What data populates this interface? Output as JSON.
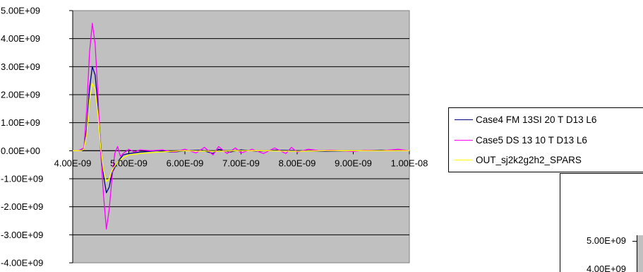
{
  "chart_data": [
    {
      "type": "line",
      "title": "",
      "xlabel": "",
      "ylabel": "",
      "xlim": [
        4e-09,
        1e-08
      ],
      "ylim": [
        -4000000000.0,
        5000000000.0
      ],
      "x_ticks": [
        "4.00E-09",
        "5.00E-09",
        "6.00E-09",
        "7.00E-09",
        "8.00E-09",
        "9.00E-09",
        "1.00E-08"
      ],
      "y_ticks": [
        "5.00E+09",
        "4.00E+09",
        "3.00E+09",
        "2.00E+09",
        "1.00E+09",
        "0.00E+00",
        "-1.00E+09",
        "-2.00E+09",
        "-3.00E+09",
        "-4.00E+09"
      ],
      "grid": "horizontal",
      "plot_background": "#c0c0c0",
      "legend_position": "right",
      "series": [
        {
          "name": "Case4 FM 13SI 20 T D13 L6",
          "color": "#000080",
          "points": [
            [
              4e-09,
              0
            ],
            [
              4.1e-09,
              0
            ],
            [
              4.2e-09,
              50000000.0
            ],
            [
              4.25e-09,
              800000000.0
            ],
            [
              4.3e-09,
              2200000000.0
            ],
            [
              4.35e-09,
              3000000000.0
            ],
            [
              4.4e-09,
              2700000000.0
            ],
            [
              4.45e-09,
              1600000000.0
            ],
            [
              4.5e-09,
              200000000.0
            ],
            [
              4.55e-09,
              -900000000.0
            ],
            [
              4.6e-09,
              -1500000000.0
            ],
            [
              4.65e-09,
              -1300000000.0
            ],
            [
              4.7e-09,
              -800000000.0
            ],
            [
              4.8e-09,
              -400000000.0
            ],
            [
              4.9e-09,
              -150000000.0
            ],
            [
              5e-09,
              -100000000.0
            ],
            [
              5.2e-09,
              -50000000.0
            ],
            [
              5.5e-09,
              0
            ],
            [
              5.8e-09,
              -50000000.0
            ],
            [
              6e-09,
              0
            ],
            [
              6.3e-09,
              20000000.0
            ],
            [
              6.5e-09,
              -100000000.0
            ],
            [
              6.6e-09,
              50000000.0
            ],
            [
              6.8e-09,
              -50000000.0
            ],
            [
              7e-09,
              30000000.0
            ],
            [
              7.3e-09,
              -20000000.0
            ],
            [
              7.6e-09,
              20000000.0
            ],
            [
              8e-09,
              0
            ],
            [
              8.5e-09,
              -20000000.0
            ],
            [
              9e-09,
              0
            ],
            [
              9.5e-09,
              20000000.0
            ],
            [
              1e-08,
              0
            ]
          ]
        },
        {
          "name": "Case5 DS 13 10 T D13 L6",
          "color": "#ff00ff",
          "points": [
            [
              4e-09,
              0
            ],
            [
              4.1e-09,
              0
            ],
            [
              4.2e-09,
              100000000.0
            ],
            [
              4.25e-09,
              1500000000.0
            ],
            [
              4.3e-09,
              3500000000.0
            ],
            [
              4.35e-09,
              4550000000.0
            ],
            [
              4.4e-09,
              3800000000.0
            ],
            [
              4.45e-09,
              2000000000.0
            ],
            [
              4.5e-09,
              -100000000.0
            ],
            [
              4.55e-09,
              -1600000000.0
            ],
            [
              4.6e-09,
              -2800000000.0
            ],
            [
              4.65e-09,
              -2100000000.0
            ],
            [
              4.7e-09,
              -1000000000.0
            ],
            [
              4.75e-09,
              -100000000.0
            ],
            [
              4.8e-09,
              150000000.0
            ],
            [
              4.85e-09,
              -200000000.0
            ],
            [
              4.9e-09,
              -100000000.0
            ],
            [
              5e-09,
              50000000.0
            ],
            [
              5.1e-09,
              -50000000.0
            ],
            [
              5.2e-09,
              30000000.0
            ],
            [
              5.4e-09,
              0
            ],
            [
              5.6e-09,
              30000000.0
            ],
            [
              5.8e-09,
              -50000000.0
            ],
            [
              6e-09,
              50000000.0
            ],
            [
              6.2e-09,
              -80000000.0
            ],
            [
              6.35e-09,
              120000000.0
            ],
            [
              6.5e-09,
              -150000000.0
            ],
            [
              6.6e-09,
              150000000.0
            ],
            [
              6.75e-09,
              -100000000.0
            ],
            [
              6.9e-09,
              100000000.0
            ],
            [
              7e-09,
              -80000000.0
            ],
            [
              7.2e-09,
              50000000.0
            ],
            [
              7.4e-09,
              -100000000.0
            ],
            [
              7.6e-09,
              100000000.0
            ],
            [
              7.8e-09,
              -100000000.0
            ],
            [
              7.9e-09,
              120000000.0
            ],
            [
              8e-09,
              -50000000.0
            ],
            [
              8.2e-09,
              50000000.0
            ],
            [
              8.4e-09,
              0
            ],
            [
              8.6e-09,
              20000000.0
            ],
            [
              8.8e-09,
              0
            ],
            [
              9e-09,
              -30000000.0
            ],
            [
              9.2e-09,
              20000000.0
            ],
            [
              9.5e-09,
              0
            ],
            [
              9.8e-09,
              50000000.0
            ],
            [
              1e-08,
              0
            ]
          ]
        },
        {
          "name": "OUT_sj2k2g2h2_SPARS",
          "color": "#ffff00",
          "points": [
            [
              4e-09,
              0
            ],
            [
              4.15e-09,
              0
            ],
            [
              4.2e-09,
              50000000.0
            ],
            [
              4.25e-09,
              600000000.0
            ],
            [
              4.3e-09,
              1800000000.0
            ],
            [
              4.35e-09,
              2400000000.0
            ],
            [
              4.4e-09,
              2200000000.0
            ],
            [
              4.45e-09,
              1300000000.0
            ],
            [
              4.5e-09,
              100000000.0
            ],
            [
              4.55e-09,
              -700000000.0
            ],
            [
              4.6e-09,
              -1100000000.0
            ],
            [
              4.65e-09,
              -1000000000.0
            ],
            [
              4.7e-09,
              -700000000.0
            ],
            [
              4.8e-09,
              -400000000.0
            ],
            [
              4.9e-09,
              -250000000.0
            ],
            [
              5e-09,
              -150000000.0
            ],
            [
              5.2e-09,
              -100000000.0
            ],
            [
              5.5e-09,
              -50000000.0
            ],
            [
              6e-09,
              0
            ],
            [
              6.5e-09,
              -20000000.0
            ],
            [
              7e-09,
              0
            ],
            [
              7.5e-09,
              0
            ],
            [
              8e-09,
              -20000000.0
            ],
            [
              8.5e-09,
              0
            ],
            [
              9e-09,
              0
            ],
            [
              9.5e-09,
              0
            ],
            [
              1e-08,
              0
            ]
          ]
        }
      ]
    },
    {
      "type": "line",
      "title": "",
      "y_ticks": [
        "5.00E+09",
        "4.00E+09"
      ]
    }
  ]
}
